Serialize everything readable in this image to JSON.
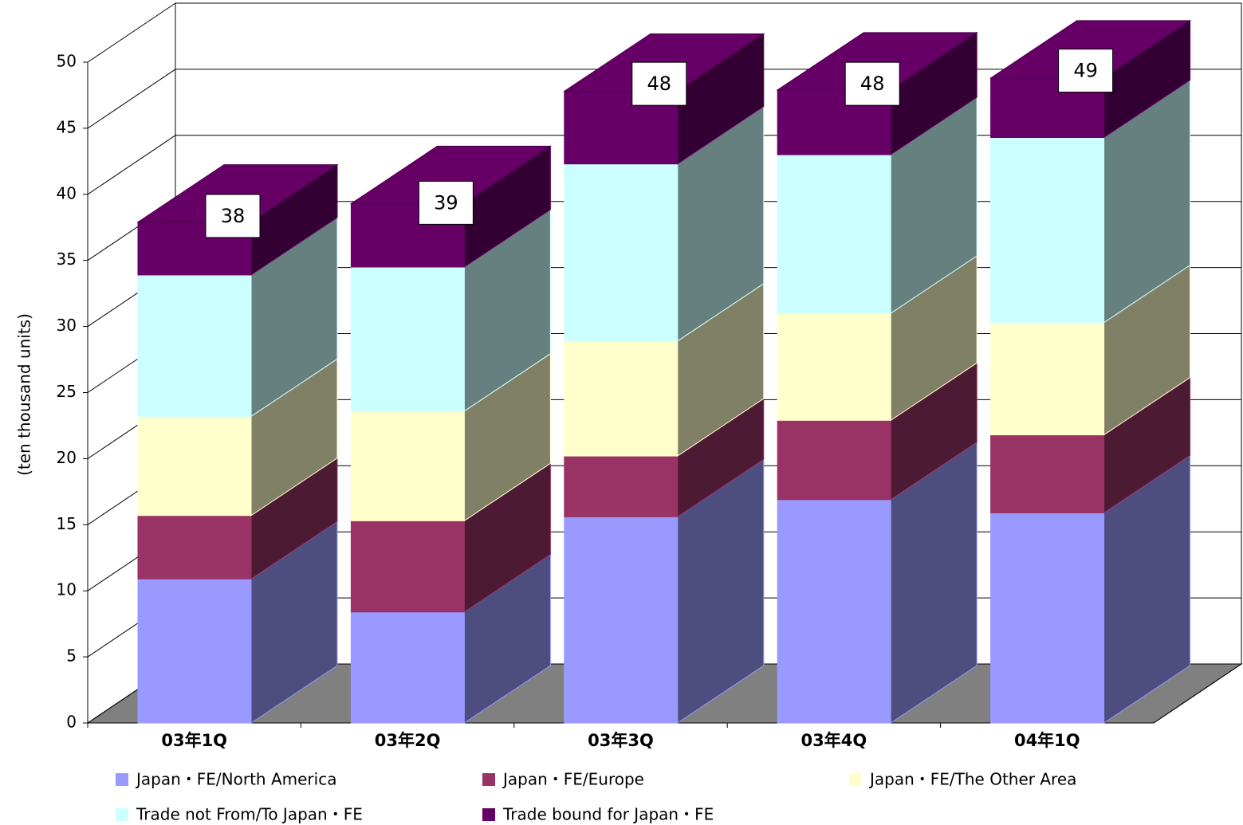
{
  "chart_data": {
    "type": "bar3d_stacked",
    "y_label": "(ten thousand units)",
    "categories": [
      "03年1Q",
      "03年2Q",
      "03年3Q",
      "03年4Q",
      "04年1Q"
    ],
    "series": [
      {
        "name": "Japan・FE/North America",
        "color": "#9999ff",
        "values": [
          10.9,
          8.4,
          15.6,
          16.9,
          15.9
        ]
      },
      {
        "name": "Japan・FE/Europe",
        "color": "#993366",
        "values": [
          4.8,
          6.9,
          4.6,
          6.0,
          5.9
        ]
      },
      {
        "name": "Japan・FE/The Other Area",
        "color": "#ffffcc",
        "values": [
          7.5,
          8.3,
          8.7,
          8.1,
          8.5
        ]
      },
      {
        "name": "Trade not From/To Japan・FE",
        "color": "#ccffff",
        "values": [
          10.7,
          10.9,
          13.4,
          12.0,
          14.0
        ]
      },
      {
        "name": "Trade bound for Japan・FE",
        "color": "#660066",
        "values": [
          4.0,
          4.8,
          5.5,
          4.9,
          4.5
        ]
      }
    ],
    "totals": [
      38,
      39,
      48,
      48,
      49
    ],
    "ylim": [
      0,
      50
    ],
    "yticks": [
      0,
      5,
      10,
      15,
      20,
      25,
      30,
      35,
      40,
      45,
      50
    ],
    "grid": true,
    "floor_color": "#808080"
  }
}
